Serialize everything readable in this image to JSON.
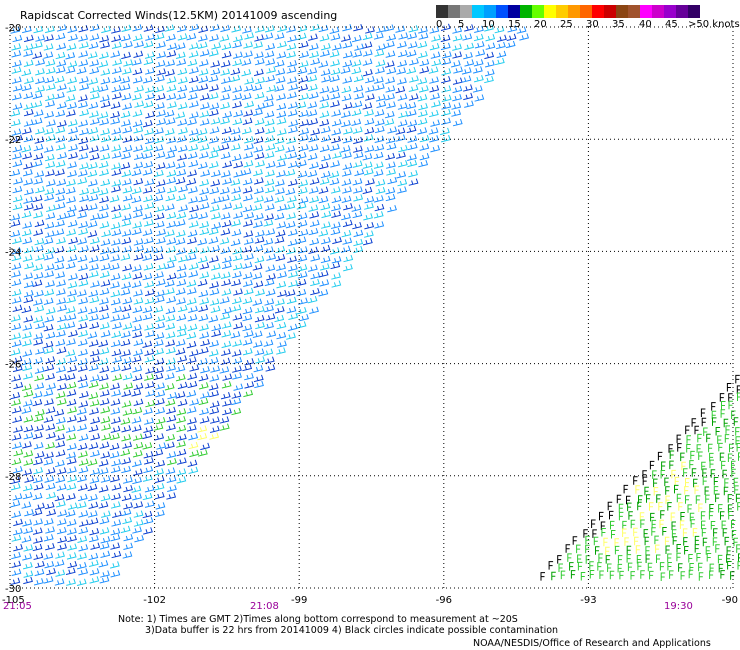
{
  "title": "Rapidscat Corrected Winds(12.5KM) 20141009 ascending",
  "colorbar": {
    "colors": [
      "#333333",
      "#777777",
      "#aaaaaa",
      "#00c8ff",
      "#00a0ff",
      "#0050ff",
      "#0000a0",
      "#00b400",
      "#66ff00",
      "#ffff00",
      "#ffcc00",
      "#ff9900",
      "#ff6600",
      "#ff0000",
      "#cc0000",
      "#8b4513",
      "#a0522d",
      "#ff00ff",
      "#cc00cc",
      "#9900cc",
      "#660099",
      "#330066"
    ],
    "labels": [
      "0",
      "5",
      "10",
      "15",
      "20",
      "25",
      "30",
      "35",
      "40",
      "45",
      ">50 knots"
    ]
  },
  "map": {
    "lat_labels": [
      "-20",
      "-22",
      "-24",
      "-26",
      "-28",
      "-30"
    ],
    "lon_labels": [
      "-105",
      "-102",
      "-99",
      "-96",
      "-93",
      "-90"
    ],
    "lat_values": [
      -20,
      -22,
      -24,
      -26,
      -28,
      -30
    ],
    "lon_values": [
      -105,
      -102,
      -99,
      -96,
      -93,
      -90
    ],
    "time_labels": [
      "21:05",
      "21:08",
      "19:30"
    ]
  },
  "note": {
    "line1": "Note: 1) Times are GMT 2)Times along bottom correspond to measurement at ~20S",
    "line2": "3)Data buffer is 22 hrs from 20141009 4) Black circles indicate possible contamination"
  },
  "credit": "NOAA/NESDIS/Office of Research and Applications"
}
